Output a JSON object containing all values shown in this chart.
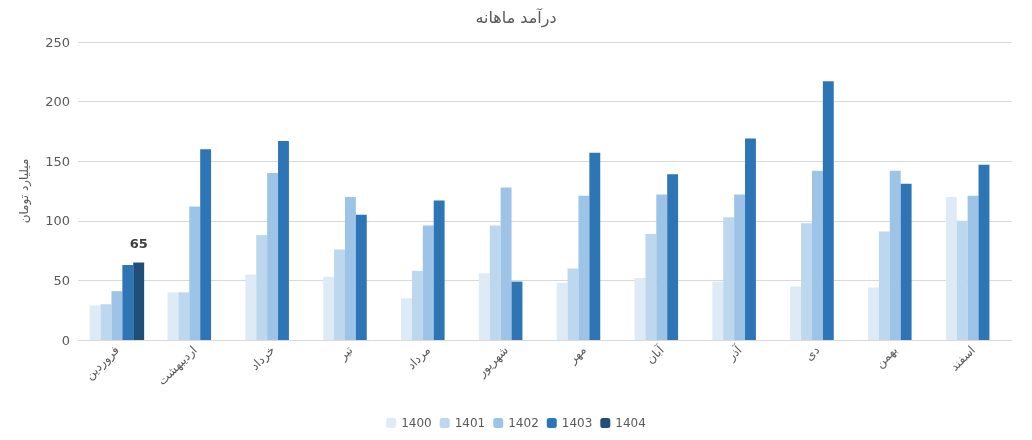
{
  "chart_data": {
    "type": "bar",
    "title": "درآمد ماهانه",
    "ylabel": "میلیارد تومان",
    "categories": [
      "فروردین",
      "اردیبهشت",
      "خرداد",
      "تیر",
      "مرداد",
      "شهریور",
      "مهر",
      "آبان",
      "آذر",
      "دی",
      "بهمن",
      "اسفند"
    ],
    "series": [
      {
        "name": "1400",
        "color": "#deebf7",
        "values": [
          29,
          40,
          55,
          53,
          35,
          56,
          48,
          52,
          49,
          45,
          44,
          120
        ]
      },
      {
        "name": "1401",
        "color": "#bdd7ee",
        "values": [
          30,
          40,
          88,
          76,
          58,
          96,
          60,
          89,
          103,
          98,
          91,
          100
        ]
      },
      {
        "name": "1402",
        "color": "#9dc3e6",
        "values": [
          41,
          112,
          140,
          120,
          96,
          128,
          121,
          122,
          122,
          142,
          142,
          121
        ]
      },
      {
        "name": "1403",
        "color": "#2e75b6",
        "values": [
          63,
          160,
          167,
          105,
          117,
          49,
          157,
          139,
          169,
          217,
          131,
          147
        ]
      },
      {
        "name": "1404",
        "color": "#1f4e79",
        "values": [
          65,
          null,
          null,
          null,
          null,
          null,
          null,
          null,
          null,
          null,
          null,
          null
        ],
        "value_labels": [
          "65",
          null,
          null,
          null,
          null,
          null,
          null,
          null,
          null,
          null,
          null,
          null
        ]
      }
    ],
    "ylim": [
      0,
      250
    ],
    "yticks": [
      0,
      50,
      100,
      150,
      200,
      250
    ],
    "grid": "y",
    "legend": "bottom"
  }
}
